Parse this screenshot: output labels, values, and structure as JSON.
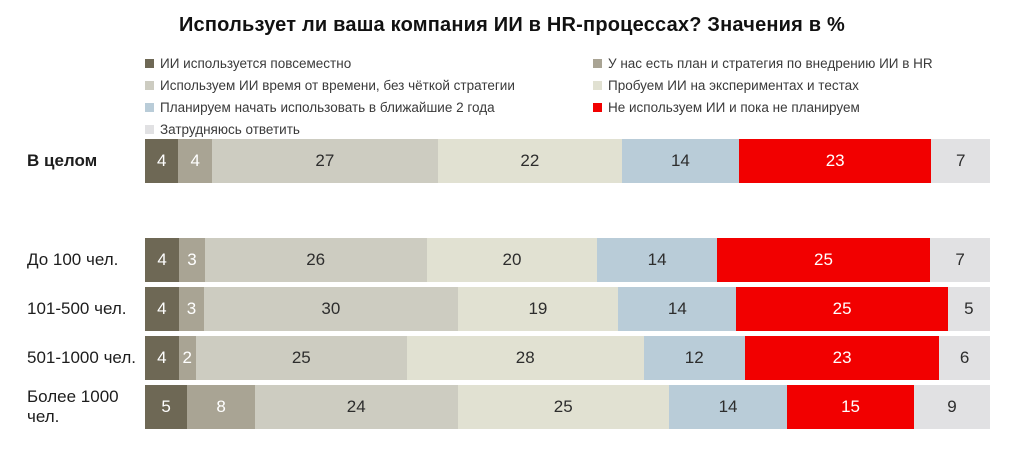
{
  "title": "Использует ли ваша компания ИИ в HR-процессах? Значения в %",
  "colors": {
    "everywhere": "#6e6855",
    "plan_strategy": "#a9a494",
    "time_to_time": "#cdccc1",
    "experiments": "#e1e1d2",
    "plan_2_years": "#b9ccd8",
    "not_using": "#f20000",
    "hard_to_answer": "#e1e1e3",
    "value_dark_text": "#2d2d2d",
    "value_light_text": "#ffffff"
  },
  "legend": {
    "columns": [
      {
        "side": "left",
        "items": [
          {
            "label": "ИИ используется повсеместно",
            "color": "#6e6855"
          },
          {
            "label": "Используем ИИ время от времени, без чёткой стратегии",
            "color": "#cdccc1"
          },
          {
            "label": "Планируем начать использовать в ближайшие 2 года",
            "color": "#b9ccd8"
          },
          {
            "label": "Затрудняюсь ответить",
            "color": "#e1e1e3"
          }
        ]
      },
      {
        "side": "right",
        "items": [
          {
            "label": "У нас есть план и стратегия по внедрению ИИ в HR",
            "color": "#a9a494"
          },
          {
            "label": "Пробуем ИИ на экспериментах и тестах",
            "color": "#e1e1d2"
          },
          {
            "label": "Не используем ИИ и пока не планируем",
            "color": "#f20000"
          }
        ]
      }
    ]
  },
  "chart_data": {
    "type": "bar",
    "stacked": true,
    "orientation": "horizontal",
    "title": "Использует ли ваша компания ИИ в HR-процессах? Значения в %",
    "unit": "%",
    "grid": false,
    "legend_position": "top",
    "categories": [
      "В целом",
      "До 100 чел.",
      "101-500 чел.",
      "501-1000 чел.",
      "Более 1000 чел."
    ],
    "categories_bold": [
      true,
      false,
      false,
      false,
      false
    ],
    "series": [
      {
        "name": "ИИ используется повсеместно",
        "color": "#6e6855",
        "text_color": "#ffffff",
        "values": [
          4,
          4,
          4,
          4,
          5
        ]
      },
      {
        "name": "У нас есть план и стратегия по внедрению ИИ в HR",
        "color": "#a9a494",
        "text_color": "#ffffff",
        "values": [
          4,
          3,
          3,
          2,
          8
        ]
      },
      {
        "name": "Используем ИИ время от времени, без чёткой стратегии",
        "color": "#cdccc1",
        "text_color": "#2d2d2d",
        "values": [
          27,
          26,
          30,
          25,
          24
        ]
      },
      {
        "name": "Пробуем ИИ на экспериментах и тестах",
        "color": "#e1e1d2",
        "text_color": "#2d2d2d",
        "values": [
          22,
          20,
          19,
          28,
          25
        ]
      },
      {
        "name": "Планируем начать использовать в ближайшие 2 года",
        "color": "#b9ccd8",
        "text_color": "#2d2d2d",
        "values": [
          14,
          14,
          14,
          12,
          14
        ]
      },
      {
        "name": "Не используем ИИ и пока не планируем",
        "color": "#f20000",
        "text_color": "#ffffff",
        "values": [
          23,
          25,
          25,
          23,
          15
        ]
      },
      {
        "name": "Затрудняюсь ответить",
        "color": "#e1e1e3",
        "text_color": "#2d2d2d",
        "values": [
          7,
          7,
          5,
          6,
          9
        ]
      }
    ]
  }
}
